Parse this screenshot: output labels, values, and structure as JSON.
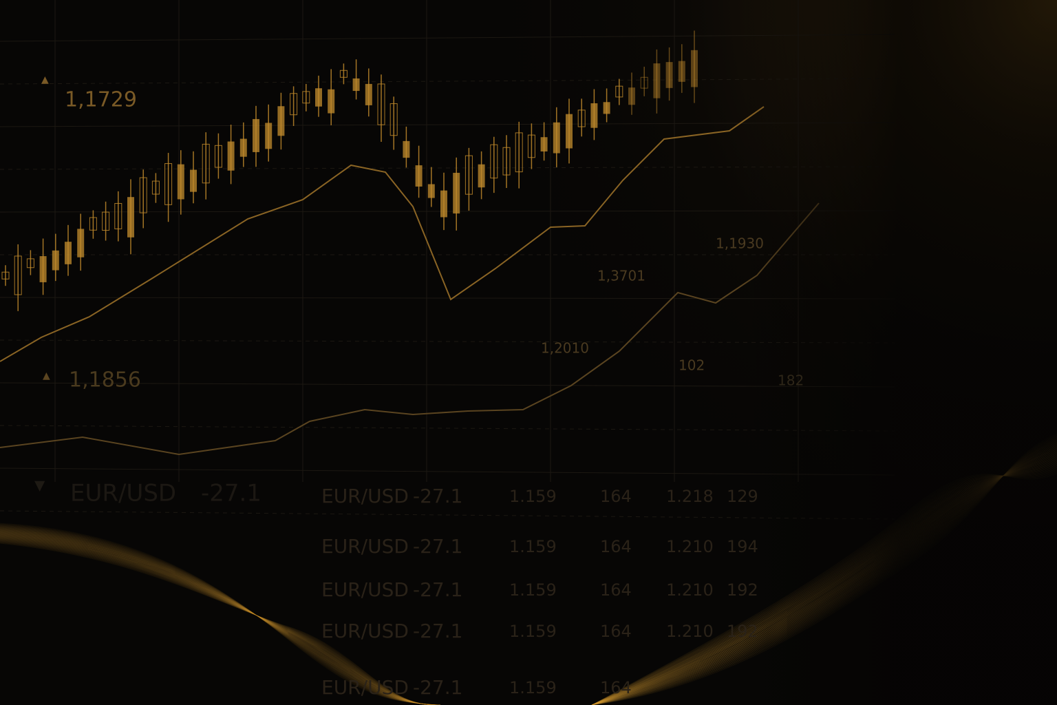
{
  "price_labels": [
    {
      "arrow": "▲",
      "text": "1,1729"
    },
    {
      "arrow": "▲",
      "text": "1,1856"
    }
  ],
  "chart_labels": [
    "1,1930",
    "1,3701",
    "1,2010",
    "102",
    "182"
  ],
  "ticker": {
    "arrow": "▼",
    "pair": "EUR/USD",
    "change": "-27.1"
  },
  "table": {
    "rows": [
      [
        "EUR/USD",
        "-27.1",
        "1.159",
        "164",
        "1.218",
        "129"
      ],
      [
        "EUR/USD",
        "-27.1",
        "1.159",
        "164",
        "1.210",
        "194"
      ],
      [
        "EUR/USD",
        "-27.1",
        "1.159",
        "164",
        "1.210",
        "192"
      ],
      [
        "EUR/USD",
        "-27.1",
        "1.159",
        "164",
        "1.210",
        "192"
      ],
      [
        "EUR/USD",
        "-27.1",
        "1.159",
        "164"
      ]
    ]
  }
}
